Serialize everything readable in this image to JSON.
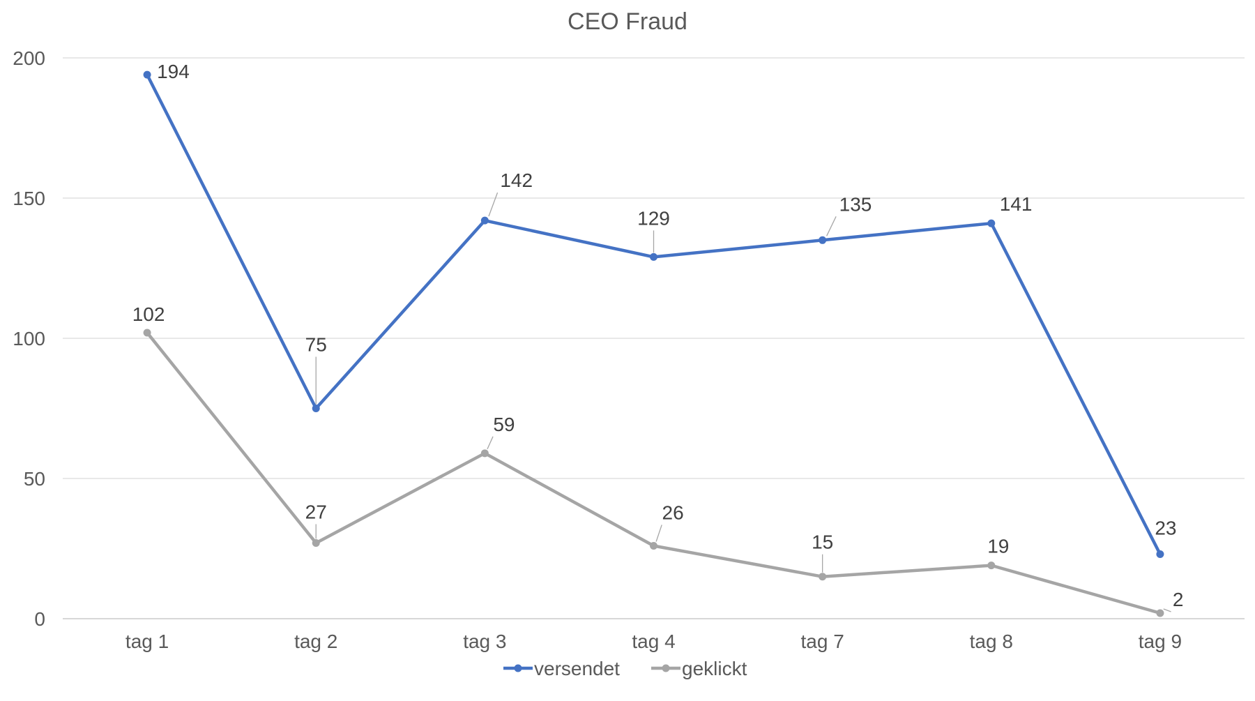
{
  "chart_data": {
    "type": "line",
    "title": "CEO Fraud",
    "xlabel": "",
    "ylabel": "",
    "categories": [
      "tag 1",
      "tag 2",
      "tag 3",
      "tag 4",
      "tag 7",
      "tag 8",
      "tag 9"
    ],
    "ylim": [
      0,
      200
    ],
    "yticks": [
      0,
      50,
      100,
      150,
      200
    ],
    "grid": true,
    "legend_position": "bottom",
    "series": [
      {
        "name": "versendet",
        "color": "#4472C4",
        "values": [
          194,
          75,
          142,
          129,
          135,
          141,
          23
        ]
      },
      {
        "name": "geklickt",
        "color": "#A5A5A5",
        "values": [
          102,
          27,
          59,
          26,
          15,
          19,
          2
        ]
      }
    ]
  }
}
